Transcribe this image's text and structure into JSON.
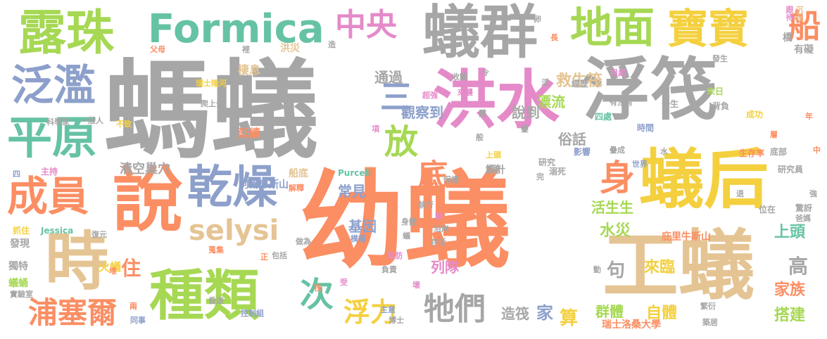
{
  "colors": {
    "gray": "#a6a6a6",
    "orange": "#fb8e63",
    "pink": "#e58ac9",
    "yellow": "#f4d03f",
    "green": "#a6d854",
    "teal": "#66c2a5",
    "blue": "#8da0cb",
    "tan": "#e5c494"
  },
  "words": [
    "螞蟻",
    "幼蟻",
    "洪水",
    "浮筏",
    "蟻群",
    "工蟻",
    "蟻后",
    "說",
    "時",
    "種類",
    "乾燥",
    "露珠",
    "Formica",
    "地面",
    "寶寶",
    "中央",
    "泛濫",
    "平原",
    "成員",
    "浦塞爾",
    "牠們",
    "selysi",
    "身",
    "船",
    "放",
    "次",
    "浮力",
    "底",
    "三",
    "救生筏",
    "漂流",
    "說到",
    "通過",
    "觀察到",
    "俗話",
    "水災",
    "活生生",
    "上頭",
    "來臨",
    "句",
    "自體",
    "群體",
    "家族",
    "高",
    "搭建",
    "常見",
    "住",
    "清空巢穴",
    "列隊",
    "基因",
    "算",
    "家",
    "造筏",
    "火蟻",
    "棲息",
    "延續",
    "洪災",
    "有礙",
    "橋",
    "瑞士洛桑大學",
    "庇里牛斯山",
    "阿爾卑斯山",
    "船底",
    "設計",
    "研究",
    "影響",
    "四處",
    "時間",
    "成功",
    "末日",
    "經歷",
    "一生",
    "背負",
    "研究員",
    "驚訝",
    "位在",
    "生存率",
    "底部",
    "Purcell",
    "Jessica",
    "主持",
    "科學家",
    "一般人",
    "不致",
    "爬上去",
    "瑞士隆河",
    "收關",
    "來襲",
    "超強",
    "有沒有",
    "發生",
    "用處",
    "沉沒",
    "跟待",
    "卵",
    "長",
    "父母",
    "裡",
    "造",
    "活",
    "令",
    "層",
    "世界",
    "溺死",
    "完",
    "上頭",
    "也許",
    "保護",
    "執行",
    "群",
    "沿岸",
    "存活",
    "身體",
    "蟻",
    "模擬",
    "脂肪",
    "負責",
    "博士",
    "主意",
    "受",
    "筏",
    "壞",
    "昏迷",
    "控制組",
    "兩",
    "同事",
    "獨特",
    "發現",
    "抓住",
    "蟻蛹",
    "實驗室",
    "堆",
    "復元",
    "蒐集",
    "包括",
    "正",
    "做為",
    "解釋",
    "繁衍",
    "築居",
    "爸媽",
    "水",
    "疊成",
    "動",
    "退",
    "強",
    "中",
    "年",
    "四",
    "項",
    "體",
    "般",
    "疊"
  ]
}
